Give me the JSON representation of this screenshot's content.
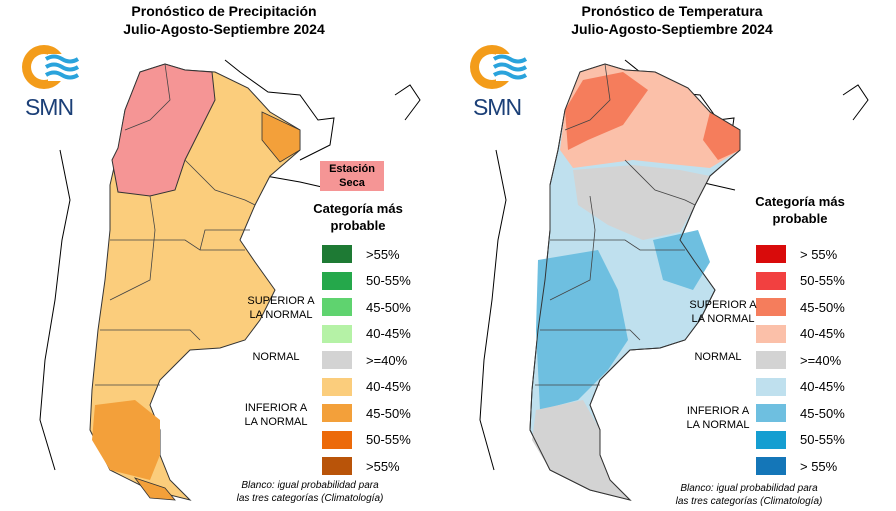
{
  "left": {
    "title_line1": "Pronóstico de Precipitación",
    "title_line2": "Julio-Agosto-Septiembre 2024",
    "logo_text": "SMN",
    "station_line1": "Estación",
    "station_line2": "Seca",
    "station_color": "#f59595",
    "category_line1": "Categoría más",
    "category_line2": "probable",
    "legend": [
      {
        "label": ">55%",
        "color": "#1e7a34"
      },
      {
        "label": "50-55%",
        "color": "#25a84b"
      },
      {
        "label": "45-50%",
        "color": "#5fd36f"
      },
      {
        "label": "40-45%",
        "color": "#b5f2a6"
      },
      {
        "label": ">=40%",
        "color": "#d3d3d3"
      },
      {
        "label": "40-45%",
        "color": "#fbcd7c"
      },
      {
        "label": "45-50%",
        "color": "#f3a03a"
      },
      {
        "label": "50-55%",
        "color": "#ec6a0a"
      },
      {
        "label": ">55%",
        "color": "#b95409"
      }
    ],
    "group_superior_1": "SUPERIOR A",
    "group_superior_2": "LA NORMAL",
    "group_normal": "NORMAL",
    "group_inferior_1": "INFERIOR A",
    "group_inferior_2": "LA NORMAL",
    "note_line1": "Blanco: igual probabilidad para",
    "note_line2": "las tres categorías (Climatología)"
  },
  "right": {
    "title_line1": "Pronóstico de Temperatura",
    "title_line2": "Julio-Agosto-Septiembre 2024",
    "logo_text": "SMN",
    "category_line1": "Categoría más",
    "category_line2": "probable",
    "legend": [
      {
        "label": "> 55%",
        "color": "#d90b0b"
      },
      {
        "label": "50-55%",
        "color": "#f24040"
      },
      {
        "label": "45-50%",
        "color": "#f57d5c"
      },
      {
        "label": "40-45%",
        "color": "#fbc0a9"
      },
      {
        "label": ">=40%",
        "color": "#d3d3d3"
      },
      {
        "label": "40-45%",
        "color": "#bfe0ee"
      },
      {
        "label": "45-50%",
        "color": "#6ebfe0"
      },
      {
        "label": "50-55%",
        "color": "#159ed1"
      },
      {
        "label": "> 55%",
        "color": "#1476b8"
      }
    ],
    "group_superior_1": "SUPERIOR A",
    "group_superior_2": "LA NORMAL",
    "group_normal": "NORMAL",
    "group_inferior_1": "INFERIOR A",
    "group_inferior_2": "LA NORMAL",
    "note_line1": "Blanco: igual probabilidad para",
    "note_line2": "las tres categorías (Climatología)"
  },
  "colors": {
    "logo_orange": "#f39c1a",
    "logo_blue": "#2aa3dc",
    "logo_text": "#1b3f77",
    "precip_dry": "#f59595",
    "precip_below": "#fbcd7c",
    "precip_below_strong": "#f3a03a",
    "temp_above": "#fbc0a9",
    "temp_above_strong": "#f57d5c",
    "temp_normal": "#d3d3d3",
    "temp_below": "#bfe0ee",
    "temp_below_strong": "#6ebfe0"
  }
}
